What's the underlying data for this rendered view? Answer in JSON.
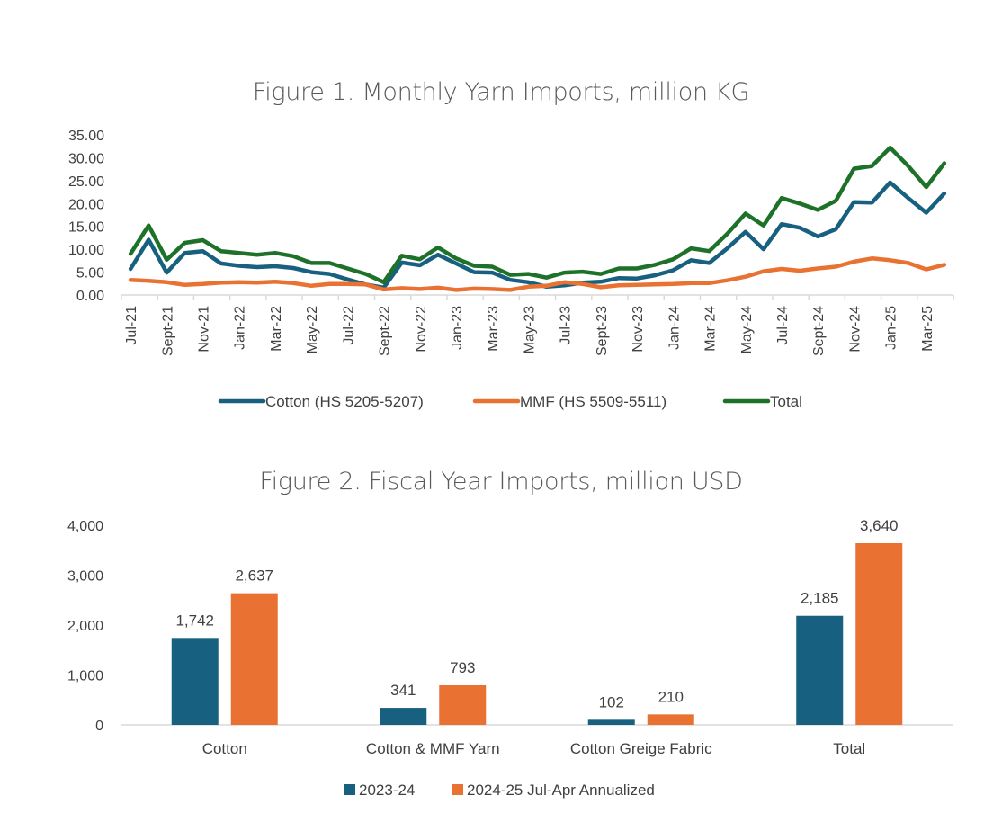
{
  "figure1": {
    "title": "Figure 1. Monthly Yarn Imports, million KG"
  },
  "figure2": {
    "title": "Figure 2. Fiscal Year Imports, million USD"
  },
  "chart_data": [
    {
      "type": "line",
      "title": "Figure 1. Monthly Yarn Imports, million KG",
      "xlabel": "",
      "ylabel": "",
      "ylim": [
        0,
        35
      ],
      "yticks": [
        "0.00",
        "5.00",
        "10.00",
        "15.00",
        "20.00",
        "25.00",
        "30.00",
        "35.00"
      ],
      "grid": false,
      "legend": "bottom",
      "x": [
        "Jul-21",
        "Aug-21",
        "Sept-21",
        "Oct-21",
        "Nov-21",
        "Dec-21",
        "Jan-22",
        "Feb-22",
        "Mar-22",
        "Apr-22",
        "May-22",
        "Jun-22",
        "Jul-22",
        "Aug-22",
        "Sept-22",
        "Oct-22",
        "Nov-22",
        "Dec-22",
        "Jan-23",
        "Feb-23",
        "Mar-23",
        "Apr-23",
        "May-23",
        "Jun-23",
        "Jul-23",
        "Aug-23",
        "Sept-23",
        "Oct-23",
        "Nov-23",
        "Dec-23",
        "Jan-24",
        "Feb-24",
        "Mar-24",
        "Apr-24",
        "May-24",
        "Jun-24",
        "Jul-24",
        "Aug-24",
        "Sept-24",
        "Oct-24",
        "Nov-24",
        "Dec-24",
        "Jan-25",
        "Feb-25",
        "Mar-25",
        "Apr-25"
      ],
      "xtick_labels": [
        "Jul-21",
        "Sept-21",
        "Nov-21",
        "Jan-22",
        "Mar-22",
        "May-22",
        "Jul-22",
        "Sept-22",
        "Nov-22",
        "Jan-23",
        "Mar-23",
        "May-23",
        "Jul-23",
        "Sept-23",
        "Nov-23",
        "Jan-24",
        "Mar-24",
        "May-24",
        "Jul-24",
        "Sept-24",
        "Nov-24",
        "Jan-25",
        "Mar-25"
      ],
      "series": [
        {
          "name": "Cotton (HS 5205-5207)",
          "color": "#17607f",
          "values": [
            5.7,
            12.1,
            4.9,
            9.2,
            9.6,
            6.9,
            6.4,
            6.1,
            6.3,
            5.9,
            5.0,
            4.6,
            3.4,
            2.3,
            1.6,
            7.1,
            6.5,
            8.8,
            6.9,
            5.0,
            4.9,
            3.3,
            2.8,
            1.8,
            2.1,
            2.7,
            2.9,
            3.7,
            3.6,
            4.3,
            5.4,
            7.6,
            7.0,
            10.2,
            13.8,
            10.0,
            15.5,
            14.7,
            12.8,
            14.4,
            20.3,
            20.2,
            24.6,
            21.2,
            18.0,
            22.2
          ]
        },
        {
          "name": "MMF (HS 5509-5511)",
          "color": "#e97132",
          "values": [
            3.3,
            3.1,
            2.8,
            2.2,
            2.4,
            2.7,
            2.8,
            2.7,
            2.9,
            2.6,
            2.0,
            2.4,
            2.4,
            2.3,
            1.2,
            1.5,
            1.3,
            1.6,
            1.1,
            1.4,
            1.3,
            1.1,
            1.8,
            2.0,
            2.8,
            2.4,
            1.7,
            2.1,
            2.2,
            2.3,
            2.4,
            2.6,
            2.6,
            3.2,
            4.0,
            5.2,
            5.7,
            5.3,
            5.8,
            6.2,
            7.3,
            8.0,
            7.6,
            7.0,
            5.6,
            6.6
          ]
        },
        {
          "name": "Total",
          "color": "#1e7128",
          "values": [
            9.0,
            15.2,
            7.7,
            11.4,
            12.0,
            9.6,
            9.2,
            8.8,
            9.2,
            8.5,
            7.0,
            7.0,
            5.8,
            4.6,
            2.8,
            8.6,
            7.8,
            10.4,
            8.0,
            6.4,
            6.2,
            4.4,
            4.6,
            3.8,
            4.9,
            5.1,
            4.6,
            5.8,
            5.8,
            6.6,
            7.8,
            10.2,
            9.6,
            13.4,
            17.8,
            15.2,
            21.2,
            20.0,
            18.6,
            20.6,
            27.6,
            28.2,
            32.2,
            28.2,
            23.6,
            28.8
          ]
        }
      ]
    },
    {
      "type": "bar",
      "title": "Figure 2. Fiscal Year Imports, million USD",
      "xlabel": "",
      "ylabel": "",
      "ylim": [
        0,
        4000
      ],
      "yticks": [
        "0",
        "1,000",
        "2,000",
        "3,000",
        "4,000"
      ],
      "grid": false,
      "legend": "bottom",
      "categories": [
        "Cotton",
        "Cotton & MMF Yarn",
        "Cotton Greige Fabric",
        "Total"
      ],
      "series": [
        {
          "name": "2023-24",
          "color": "#17607f",
          "values": [
            1742,
            341,
            102,
            2185
          ],
          "labels": [
            "1,742",
            "341",
            "102",
            "2,185"
          ]
        },
        {
          "name": "2024-25 Jul-Apr Annualized",
          "color": "#e97132",
          "values": [
            2637,
            793,
            210,
            3640
          ],
          "labels": [
            "2,637",
            "793",
            "210",
            "3,640"
          ]
        }
      ]
    }
  ]
}
